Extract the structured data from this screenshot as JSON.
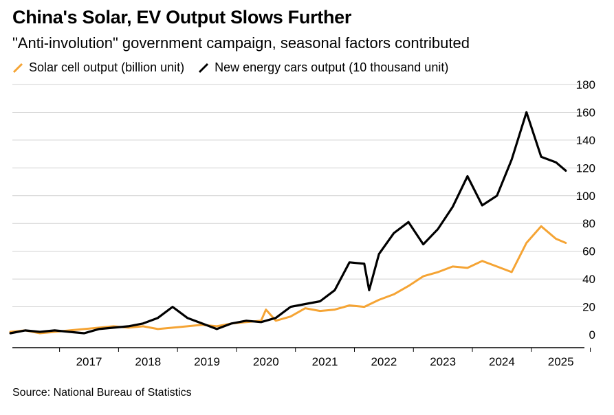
{
  "title": "China's Solar, EV Output Slows Further",
  "subtitle": "\"Anti-involution\" government campaign, seasonal factors contributed",
  "source": "Source: National Bureau of Statistics",
  "colors": {
    "solar": "#f5a434",
    "ev": "#000000",
    "grid": "#d0d0d0"
  },
  "chart_data": {
    "type": "line",
    "xlabel": "",
    "ylabel": "",
    "ylim": [
      0,
      180
    ],
    "yticks": [
      "0",
      "20",
      "40",
      "60",
      "80",
      "100",
      "120",
      "140",
      "160",
      "180"
    ],
    "xticks": [
      "2017",
      "2018",
      "2019",
      "2020",
      "2021",
      "2022",
      "2023",
      "2024",
      "2025"
    ],
    "grid": true,
    "legend_position": "top-left",
    "series": [
      {
        "name": "Solar cell output (billion unit)",
        "color": "#f5a434",
        "points": [
          [
            "2016-03",
            2
          ],
          [
            "2016-06",
            3
          ],
          [
            "2016-09",
            1
          ],
          [
            "2016-12",
            2
          ],
          [
            "2017-03",
            3
          ],
          [
            "2017-06",
            4
          ],
          [
            "2017-09",
            5
          ],
          [
            "2017-12",
            6
          ],
          [
            "2018-03",
            5
          ],
          [
            "2018-06",
            6
          ],
          [
            "2018-09",
            4
          ],
          [
            "2018-12",
            5
          ],
          [
            "2019-03",
            6
          ],
          [
            "2019-06",
            7
          ],
          [
            "2019-09",
            6
          ],
          [
            "2019-12",
            8
          ],
          [
            "2020-03",
            9
          ],
          [
            "2020-06",
            10
          ],
          [
            "2020-07",
            18
          ],
          [
            "2020-09",
            10
          ],
          [
            "2020-12",
            13
          ],
          [
            "2021-03",
            19
          ],
          [
            "2021-06",
            17
          ],
          [
            "2021-09",
            18
          ],
          [
            "2021-12",
            21
          ],
          [
            "2022-03",
            20
          ],
          [
            "2022-06",
            25
          ],
          [
            "2022-09",
            29
          ],
          [
            "2022-12",
            35
          ],
          [
            "2023-03",
            42
          ],
          [
            "2023-06",
            45
          ],
          [
            "2023-09",
            49
          ],
          [
            "2023-12",
            48
          ],
          [
            "2024-03",
            53
          ],
          [
            "2024-06",
            49
          ],
          [
            "2024-09",
            45
          ],
          [
            "2024-12",
            66
          ],
          [
            "2025-03",
            78
          ],
          [
            "2025-06",
            69
          ],
          [
            "2025-08",
            66
          ]
        ]
      },
      {
        "name": "New energy cars output (10 thousand unit)",
        "color": "#000000",
        "points": [
          [
            "2016-03",
            1
          ],
          [
            "2016-06",
            3
          ],
          [
            "2016-09",
            2
          ],
          [
            "2016-12",
            3
          ],
          [
            "2017-03",
            2
          ],
          [
            "2017-06",
            1
          ],
          [
            "2017-09",
            4
          ],
          [
            "2017-12",
            5
          ],
          [
            "2018-03",
            6
          ],
          [
            "2018-06",
            8
          ],
          [
            "2018-09",
            12
          ],
          [
            "2018-12",
            20
          ],
          [
            "2019-03",
            12
          ],
          [
            "2019-06",
            8
          ],
          [
            "2019-09",
            4
          ],
          [
            "2019-12",
            8
          ],
          [
            "2020-03",
            10
          ],
          [
            "2020-06",
            9
          ],
          [
            "2020-09",
            12
          ],
          [
            "2020-12",
            20
          ],
          [
            "2021-03",
            22
          ],
          [
            "2021-06",
            24
          ],
          [
            "2021-09",
            32
          ],
          [
            "2021-12",
            52
          ],
          [
            "2022-03",
            51
          ],
          [
            "2022-04",
            32
          ],
          [
            "2022-06",
            58
          ],
          [
            "2022-09",
            73
          ],
          [
            "2022-12",
            81
          ],
          [
            "2023-03",
            65
          ],
          [
            "2023-06",
            76
          ],
          [
            "2023-09",
            92
          ],
          [
            "2023-12",
            114
          ],
          [
            "2024-03",
            93
          ],
          [
            "2024-06",
            100
          ],
          [
            "2024-09",
            126
          ],
          [
            "2024-12",
            160
          ],
          [
            "2025-03",
            128
          ],
          [
            "2025-06",
            124
          ],
          [
            "2025-08",
            118
          ]
        ]
      }
    ]
  }
}
